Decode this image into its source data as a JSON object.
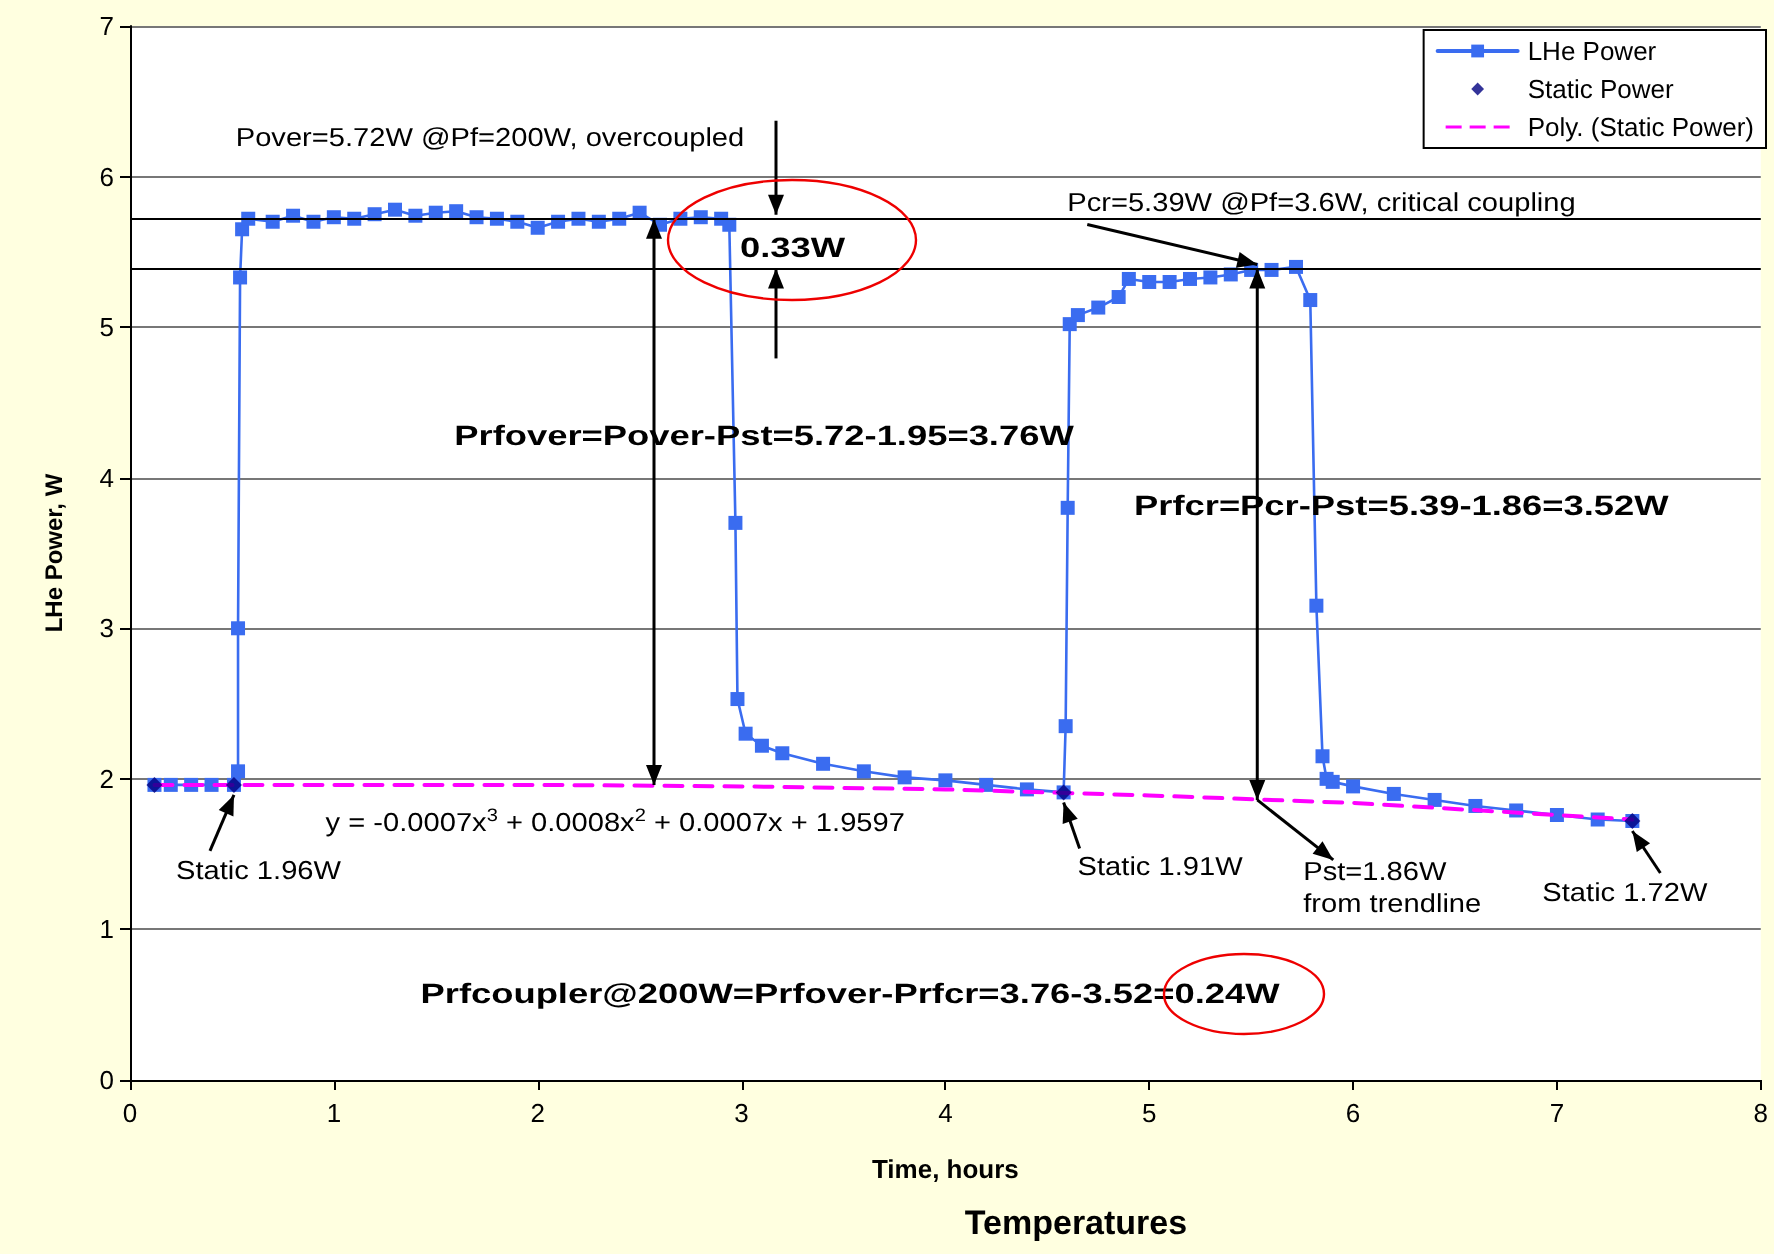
{
  "chart_data": {
    "type": "line",
    "title": "Temperatures",
    "xlabel": "Time, hours",
    "ylabel": "LHe Power, W",
    "xlim": [
      0,
      8
    ],
    "xticks": [
      0,
      1,
      2,
      3,
      4,
      5,
      6,
      7,
      8
    ],
    "ylim": [
      0,
      7
    ],
    "yticks": [
      0,
      1,
      2,
      3,
      4,
      5,
      6,
      7
    ],
    "grid": "y",
    "legend": "top right",
    "series": [
      {
        "name": "LHe Power",
        "color": "#3a6cf0",
        "marker": "square",
        "line_style": "solid",
        "x": [
          0.12,
          0.2,
          0.3,
          0.4,
          0.51,
          0.53,
          0.53,
          0.54,
          0.55,
          0.58,
          0.7,
          0.8,
          0.9,
          1.0,
          1.1,
          1.2,
          1.3,
          1.4,
          1.5,
          1.6,
          1.7,
          1.8,
          1.9,
          2.0,
          2.1,
          2.2,
          2.3,
          2.4,
          2.5,
          2.6,
          2.7,
          2.8,
          2.9,
          2.94,
          2.97,
          2.98,
          3.02,
          3.1,
          3.2,
          3.4,
          3.6,
          3.8,
          4.0,
          4.2,
          4.4,
          4.58,
          4.59,
          4.6,
          4.61,
          4.65,
          4.75,
          4.85,
          4.9,
          5.0,
          5.1,
          5.2,
          5.3,
          5.4,
          5.5,
          5.6,
          5.72,
          5.79,
          5.82,
          5.85,
          5.87,
          5.9,
          6.0,
          6.2,
          6.4,
          6.6,
          6.8,
          7.0,
          7.2,
          7.37
        ],
        "values": [
          1.96,
          1.96,
          1.96,
          1.96,
          1.96,
          2.05,
          3.0,
          5.33,
          5.65,
          5.72,
          5.7,
          5.74,
          5.7,
          5.73,
          5.72,
          5.75,
          5.78,
          5.74,
          5.76,
          5.77,
          5.73,
          5.72,
          5.7,
          5.66,
          5.7,
          5.72,
          5.7,
          5.72,
          5.76,
          5.68,
          5.72,
          5.73,
          5.72,
          5.68,
          3.7,
          2.53,
          2.3,
          2.22,
          2.17,
          2.1,
          2.05,
          2.01,
          1.99,
          1.96,
          1.93,
          1.91,
          2.35,
          3.8,
          5.02,
          5.08,
          5.13,
          5.2,
          5.32,
          5.3,
          5.3,
          5.32,
          5.33,
          5.35,
          5.38,
          5.38,
          5.4,
          5.18,
          3.15,
          2.15,
          2.0,
          1.98,
          1.95,
          1.9,
          1.86,
          1.82,
          1.79,
          1.76,
          1.73,
          1.72
        ]
      },
      {
        "name": "Static Power",
        "type": "scatter",
        "color": "#000080",
        "marker": "diamond",
        "x": [
          0.12,
          0.51,
          4.58,
          7.37
        ],
        "values": [
          1.96,
          1.96,
          1.91,
          1.72
        ]
      },
      {
        "name": "Poly. (Static Power)",
        "color": "#ff00ff",
        "marker": "none",
        "line_style": "dashed",
        "x": [
          0.12,
          1,
          2,
          3,
          4,
          5,
          6,
          7,
          7.37
        ],
        "values": [
          1.96,
          1.96,
          1.96,
          1.95,
          1.93,
          1.89,
          1.84,
          1.76,
          1.73
        ]
      }
    ],
    "ref_lines": [
      {
        "axis": "y",
        "value": 5.72,
        "color": "#000000"
      },
      {
        "axis": "y",
        "value": 5.39,
        "color": "#000000"
      }
    ],
    "annotations": [
      "Pover=5.72W @Pf=200W, overcoupled",
      "0.33W",
      "Prfover=Pover-Pst=5.72-1.95=3.76W",
      {
        "text": "Pcr=5.39W @Pf=3.6W, critical coupling",
        "x": 5.53,
        "y": 5.39
      },
      "Prfcr=Pcr-Pst=5.39-1.86=3.52W",
      {
        "text": "y = -0.0007x$^{3}$ + 0.0008x$^{2}$ + 0.0007x + 1.9597",
        "x": 2.5,
        "y": 1.96
      },
      {
        "text": "Static 1.96W",
        "x": 0.51,
        "y": 1.96
      },
      {
        "text": "Static 1.91W",
        "x": 4.58,
        "y": 1.91
      },
      {
        "text": "Pst=1.86W\nfrom trendline",
        "x": 5.53,
        "y": 1.86
      },
      {
        "text": "Static 1.72W",
        "x": 7.37,
        "y": 1.72
      },
      "Prfcoupler@200W=Prfover-Prfcr=3.76-3.52=0.24W"
    ]
  }
}
